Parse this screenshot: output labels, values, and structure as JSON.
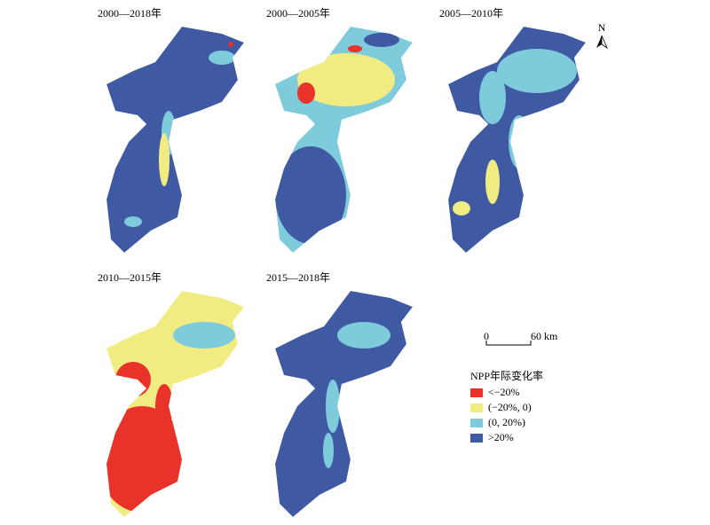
{
  "panels": [
    {
      "title": "2000—2018年"
    },
    {
      "title": "2000—2005年"
    },
    {
      "title": "2005—2010年"
    },
    {
      "title": "2010—2015年"
    },
    {
      "title": "2015—2018年"
    }
  ],
  "north": "N",
  "scale_bar": {
    "start": "0",
    "end": "60 km"
  },
  "legend": {
    "title": "NPP年际变化率",
    "items": [
      {
        "label": "<−20%",
        "color": "#e8322a"
      },
      {
        "label": "(−20%, 0)",
        "color": "#f0ec82"
      },
      {
        "label": "(0, 20%)",
        "color": "#7ecbdc"
      },
      {
        "label": ">20%",
        "color": "#3f5aa3"
      }
    ]
  }
}
